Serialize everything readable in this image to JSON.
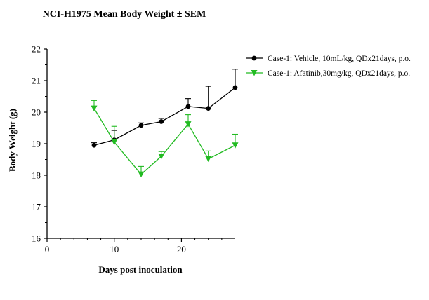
{
  "chart_data": {
    "type": "line",
    "title": "NCI-H1975 Mean Body Weight ± SEM",
    "xlabel": "Days post inoculation",
    "ylabel": "Body Weight (g)",
    "xlim": [
      0,
      28
    ],
    "ylim": [
      16,
      22
    ],
    "x_ticks": [
      0,
      10,
      20
    ],
    "y_ticks": [
      16,
      17,
      18,
      19,
      20,
      21,
      22
    ],
    "grid": false,
    "legend_position": "top-right",
    "x": [
      7,
      10,
      14,
      17,
      21,
      24,
      28
    ],
    "series": [
      {
        "name": "Case-1: Vehicle, 10mL/kg, QDx21days, p.o.",
        "color": "#000000",
        "marker": "circle",
        "values": [
          18.95,
          19.12,
          19.58,
          19.7,
          20.18,
          20.12,
          20.78
        ],
        "sem": [
          0.08,
          0.3,
          0.08,
          0.1,
          0.25,
          0.7,
          0.58
        ]
      },
      {
        "name": "Case-1: Afatinib,30mg/kg, QDx21days, p.o.",
        "color": "#22bb22",
        "marker": "triangle-down",
        "values": [
          20.12,
          19.05,
          18.03,
          18.6,
          19.62,
          18.52,
          18.95
        ],
        "sem": [
          0.25,
          0.5,
          0.25,
          0.15,
          0.3,
          0.25,
          0.35
        ]
      }
    ]
  }
}
